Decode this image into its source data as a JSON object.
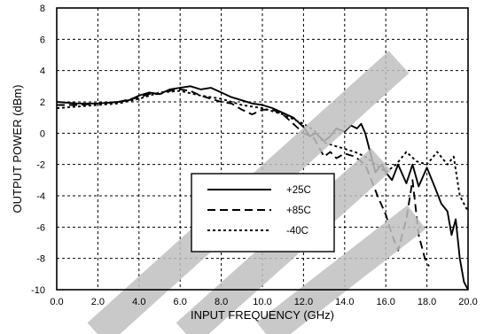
{
  "chart_data": {
    "type": "line",
    "xlabel": "INPUT FREQUENCY (GHz)",
    "ylabel": "OUTPUT POWER (dBm)",
    "xlim": [
      0,
      20
    ],
    "ylim": [
      -10,
      8
    ],
    "x_ticks": [
      "0.0",
      "2.0",
      "4.0",
      "6.0",
      "8.0",
      "10.0",
      "12.0",
      "14.0",
      "16.0",
      "18.0",
      "20.0"
    ],
    "y_ticks": [
      "-10",
      "-8",
      "-6",
      "-4",
      "-2",
      "0",
      "2",
      "4",
      "6",
      "8"
    ],
    "grid": true,
    "legend_position": "center",
    "watermark": "diagonal light gray stripes",
    "series": [
      {
        "name": "+25C",
        "style": "solid",
        "points": [
          [
            0,
            2.0
          ],
          [
            1,
            1.9
          ],
          [
            2,
            1.9
          ],
          [
            3,
            2.0
          ],
          [
            3.5,
            2.1
          ],
          [
            4,
            2.4
          ],
          [
            4.5,
            2.6
          ],
          [
            5,
            2.5
          ],
          [
            5.5,
            2.8
          ],
          [
            6,
            2.9
          ],
          [
            6.5,
            3.0
          ],
          [
            7,
            2.8
          ],
          [
            7.5,
            2.9
          ],
          [
            8,
            2.6
          ],
          [
            8.5,
            2.3
          ],
          [
            9,
            2.1
          ],
          [
            9.5,
            1.9
          ],
          [
            10,
            1.8
          ],
          [
            10.5,
            1.6
          ],
          [
            11,
            1.3
          ],
          [
            11.5,
            1.0
          ],
          [
            12,
            0.4
          ],
          [
            12.3,
            -0.2
          ],
          [
            12.6,
            0.0
          ],
          [
            13,
            -0.5
          ],
          [
            13.3,
            -0.2
          ],
          [
            13.6,
            0.3
          ],
          [
            14,
            0.1
          ],
          [
            14.3,
            0.5
          ],
          [
            14.6,
            0.3
          ],
          [
            14.8,
            0.6
          ],
          [
            15,
            0.0
          ],
          [
            15.2,
            -1.0
          ],
          [
            15.5,
            -2.5
          ],
          [
            15.8,
            -2.0
          ],
          [
            16,
            -2.5
          ],
          [
            16.3,
            -3.0
          ],
          [
            16.6,
            -2.0
          ],
          [
            17,
            -3.2
          ],
          [
            17.3,
            -2.0
          ],
          [
            17.6,
            -3.4
          ],
          [
            18,
            -2.2
          ],
          [
            18.4,
            -3.5
          ],
          [
            18.7,
            -4.5
          ],
          [
            19,
            -5.0
          ],
          [
            19.2,
            -6.5
          ],
          [
            19.4,
            -5.5
          ],
          [
            19.6,
            -8.0
          ],
          [
            19.8,
            -9.5
          ],
          [
            20,
            -10
          ]
        ]
      },
      {
        "name": "+85C",
        "style": "dashed",
        "points": [
          [
            0,
            1.8
          ],
          [
            1,
            1.8
          ],
          [
            2,
            1.9
          ],
          [
            3,
            2.0
          ],
          [
            4,
            2.3
          ],
          [
            4.5,
            2.5
          ],
          [
            5,
            2.5
          ],
          [
            5.5,
            2.7
          ],
          [
            6,
            2.8
          ],
          [
            6.5,
            2.7
          ],
          [
            7,
            2.4
          ],
          [
            7.5,
            2.2
          ],
          [
            8,
            2.0
          ],
          [
            8.5,
            1.9
          ],
          [
            9,
            1.5
          ],
          [
            9.5,
            1.2
          ],
          [
            10,
            1.5
          ],
          [
            10.5,
            1.5
          ],
          [
            11,
            1.2
          ],
          [
            11.5,
            0.6
          ],
          [
            12,
            0.0
          ],
          [
            12.5,
            -0.3
          ],
          [
            13,
            -1.5
          ],
          [
            13.3,
            -1.2
          ],
          [
            13.6,
            -1.6
          ],
          [
            14,
            -1.3
          ],
          [
            14.5,
            -1.5
          ],
          [
            15,
            -2.0
          ],
          [
            15.3,
            -3.0
          ],
          [
            15.6,
            -4.0
          ],
          [
            16,
            -5.2
          ],
          [
            16.3,
            -6.5
          ],
          [
            16.6,
            -7.5
          ],
          [
            17,
            -5.5
          ],
          [
            17.3,
            -3.0
          ],
          [
            17.6,
            -6.5
          ],
          [
            17.9,
            -8.0
          ],
          [
            18.1,
            -8.5
          ]
        ]
      },
      {
        "name": "-40C",
        "style": "dotted",
        "points": [
          [
            0,
            1.6
          ],
          [
            1,
            1.7
          ],
          [
            2,
            1.8
          ],
          [
            3,
            1.9
          ],
          [
            4,
            2.2
          ],
          [
            5,
            2.6
          ],
          [
            6,
            2.7
          ],
          [
            7,
            2.4
          ],
          [
            8,
            2.2
          ],
          [
            9,
            1.8
          ],
          [
            10,
            1.6
          ],
          [
            11,
            1.2
          ],
          [
            12,
            0.6
          ],
          [
            12.5,
            0.2
          ],
          [
            13,
            -0.6
          ],
          [
            13.5,
            -0.8
          ],
          [
            14,
            -1.0
          ],
          [
            14.5,
            -1.2
          ],
          [
            15,
            -1.5
          ],
          [
            15.5,
            -2.0
          ],
          [
            16,
            -2.5
          ],
          [
            16.5,
            -2.0
          ],
          [
            17,
            -1.2
          ],
          [
            17.5,
            -1.8
          ],
          [
            18,
            -2.0
          ],
          [
            18.5,
            -1.2
          ],
          [
            19,
            -2.0
          ],
          [
            19.3,
            -1.5
          ],
          [
            19.6,
            -4.0
          ],
          [
            20,
            -5.0
          ]
        ]
      }
    ]
  }
}
